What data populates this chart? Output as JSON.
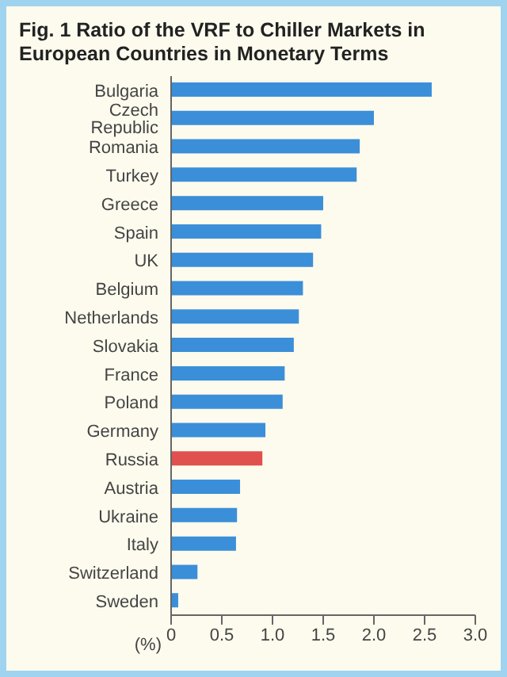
{
  "chart_data": {
    "type": "bar",
    "orientation": "horizontal",
    "title": "Fig. 1  Ratio of the VRF to Chiller Markets in European Countries in Monetary Terms",
    "xlabel": "(%)",
    "categories": [
      "Bulgaria",
      "Czech Republic",
      "Romania",
      "Turkey",
      "Greece",
      "Spain",
      "UK",
      "Belgium",
      "Netherlands",
      "Slovakia",
      "France",
      "Poland",
      "Germany",
      "Russia",
      "Austria",
      "Ukraine",
      "Italy",
      "Switzerland",
      "Sweden"
    ],
    "values": [
      2.57,
      2.0,
      1.86,
      1.83,
      1.5,
      1.48,
      1.4,
      1.3,
      1.26,
      1.21,
      1.12,
      1.1,
      0.93,
      0.9,
      0.68,
      0.65,
      0.64,
      0.26,
      0.07
    ],
    "colors": [
      "#3b8fd9",
      "#3b8fd9",
      "#3b8fd9",
      "#3b8fd9",
      "#3b8fd9",
      "#3b8fd9",
      "#3b8fd9",
      "#3b8fd9",
      "#3b8fd9",
      "#3b8fd9",
      "#3b8fd9",
      "#3b8fd9",
      "#3b8fd9",
      "#e0504f",
      "#3b8fd9",
      "#3b8fd9",
      "#3b8fd9",
      "#3b8fd9",
      "#3b8fd9"
    ],
    "xlim": [
      0,
      3.0
    ],
    "xticks": [
      0,
      {
        "value": 0.5,
        "label": "0.5"
      },
      {
        "value": 1,
        "label": "1.0"
      },
      {
        "value": 1.5,
        "label": "1.5"
      },
      {
        "value": 2,
        "label": "2.0"
      },
      {
        "value": 2.5,
        "label": "2.5"
      },
      {
        "value": 3,
        "label": "3.0"
      }
    ],
    "grid": false,
    "legend": false
  }
}
